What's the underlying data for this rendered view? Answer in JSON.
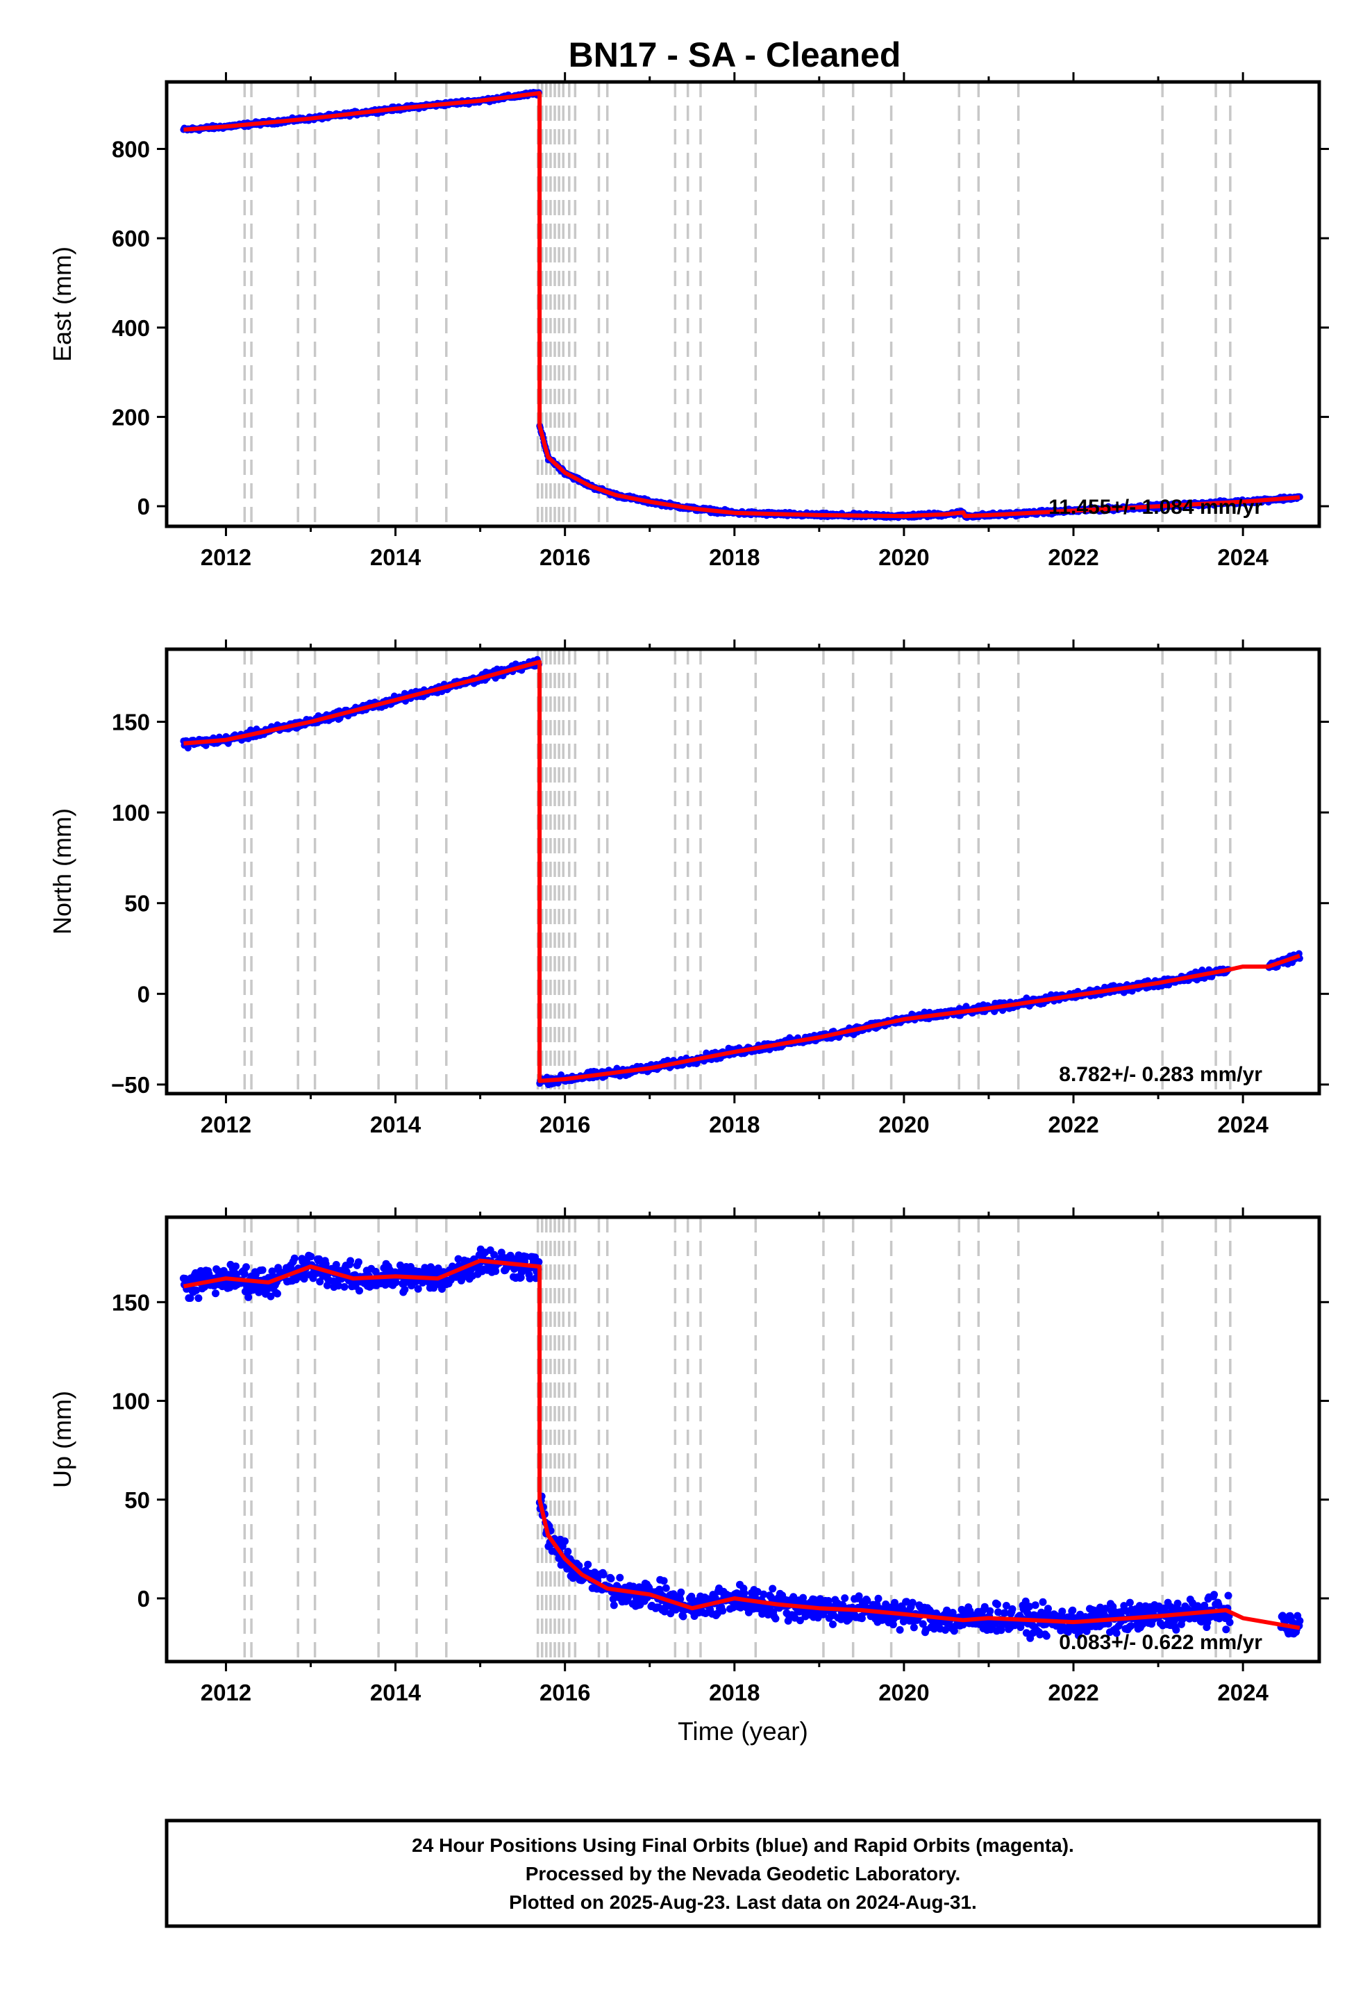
{
  "chart_data": {
    "type": "scatter",
    "title": "BN17  - SA - Cleaned",
    "xlabel": "Time (year)",
    "xlim": [
      2011.3,
      2024.9
    ],
    "x_ticks": [
      2012,
      2014,
      2016,
      2018,
      2020,
      2022,
      2024
    ],
    "x_tick_labels": [
      "2012",
      "2014",
      "2016",
      "2018",
      "2020",
      "2022",
      "2024"
    ],
    "data_start": 2011.5,
    "data_end": 2024.67,
    "colors": {
      "points": "#0000ff",
      "fit": "#ff0000",
      "events": "#c8c8c8"
    },
    "event_lines": [
      2012.22,
      2012.3,
      2012.85,
      2013.05,
      2013.8,
      2014.25,
      2014.6,
      2015.68,
      2015.73,
      2015.78,
      2015.83,
      2015.88,
      2015.93,
      2015.98,
      2016.05,
      2016.12,
      2016.4,
      2016.5,
      2017.3,
      2017.45,
      2017.6,
      2018.25,
      2019.05,
      2019.4,
      2019.85,
      2020.65,
      2020.88,
      2021.35,
      2023.05,
      2023.68,
      2023.85
    ],
    "panels": [
      {
        "name": "East",
        "ylabel": "East (mm)",
        "ylim": [
          -45,
          950
        ],
        "y_ticks": [
          0,
          200,
          400,
          600,
          800
        ],
        "y_tick_labels": [
          "0",
          "200",
          "400",
          "600",
          "800"
        ],
        "rate_label": "11.455+/- 1.084 mm/yr",
        "noise_mm": 3,
        "fit": [
          [
            2011.5,
            843
          ],
          [
            2012.0,
            850
          ],
          [
            2013.0,
            868
          ],
          [
            2014.0,
            890
          ],
          [
            2015.0,
            908
          ],
          [
            2015.7,
            925
          ],
          [
            2015.7,
            180
          ],
          [
            2015.8,
            110
          ],
          [
            2016.0,
            75
          ],
          [
            2016.3,
            45
          ],
          [
            2016.6,
            25
          ],
          [
            2017.0,
            10
          ],
          [
            2017.5,
            -5
          ],
          [
            2018.0,
            -15
          ],
          [
            2019.0,
            -20
          ],
          [
            2020.0,
            -22
          ],
          [
            2020.5,
            -18
          ],
          [
            2020.7,
            -14
          ],
          [
            2020.72,
            -22
          ],
          [
            2021.0,
            -20
          ],
          [
            2022.0,
            -10
          ],
          [
            2023.0,
            0
          ],
          [
            2024.0,
            10
          ],
          [
            2024.67,
            20
          ]
        ]
      },
      {
        "name": "North",
        "ylabel": "North (mm)",
        "ylim": [
          -55,
          190
        ],
        "y_ticks": [
          -50,
          0,
          50,
          100,
          150
        ],
        "y_tick_labels": [
          "−50",
          "0",
          "50",
          "100",
          "150"
        ],
        "rate_label": "8.782+/- 0.283 mm/yr",
        "noise_mm": 1.5,
        "gaps": [
          [
            23.83,
            24.3
          ]
        ],
        "fit": [
          [
            2011.5,
            138
          ],
          [
            2012.0,
            140
          ],
          [
            2013.0,
            150
          ],
          [
            2014.0,
            162
          ],
          [
            2015.0,
            174
          ],
          [
            2015.7,
            183
          ],
          [
            2015.7,
            -48
          ],
          [
            2016.0,
            -47
          ],
          [
            2017.0,
            -41
          ],
          [
            2018.0,
            -32
          ],
          [
            2019.0,
            -24
          ],
          [
            2020.0,
            -14
          ],
          [
            2021.0,
            -8
          ],
          [
            2022.0,
            -1
          ],
          [
            2023.0,
            6
          ],
          [
            2023.8,
            13
          ],
          [
            2024.0,
            15
          ],
          [
            2024.3,
            15
          ],
          [
            2024.67,
            21
          ]
        ]
      },
      {
        "name": "Up",
        "ylabel": "Up (mm)",
        "ylim": [
          -32,
          193
        ],
        "y_ticks": [
          0,
          50,
          100,
          150
        ],
        "y_tick_labels": [
          "0",
          "50",
          "100",
          "150"
        ],
        "rate_label": "0.083+/- 0.622 mm/yr",
        "noise_mm": 5,
        "gaps": [
          [
            23.85,
            24.45
          ]
        ],
        "fit": [
          [
            2011.5,
            158
          ],
          [
            2012.0,
            162
          ],
          [
            2012.5,
            160
          ],
          [
            2013.0,
            168
          ],
          [
            2013.5,
            162
          ],
          [
            2014.0,
            163
          ],
          [
            2014.5,
            162
          ],
          [
            2015.0,
            171
          ],
          [
            2015.7,
            168
          ],
          [
            2015.7,
            50
          ],
          [
            2015.8,
            32
          ],
          [
            2016.0,
            20
          ],
          [
            2016.2,
            12
          ],
          [
            2016.5,
            5
          ],
          [
            2017.0,
            2
          ],
          [
            2017.5,
            -5
          ],
          [
            2018.0,
            0
          ],
          [
            2018.5,
            -3
          ],
          [
            2019.0,
            -5
          ],
          [
            2019.5,
            -6
          ],
          [
            2020.0,
            -8
          ],
          [
            2020.7,
            -11
          ],
          [
            2021.0,
            -10
          ],
          [
            2022.0,
            -12
          ],
          [
            2023.0,
            -9
          ],
          [
            2023.8,
            -6
          ],
          [
            2024.0,
            -10
          ],
          [
            2024.67,
            -15
          ]
        ]
      }
    ]
  },
  "footer": {
    "line1": "24 Hour Positions Using Final Orbits (blue) and Rapid Orbits (magenta).",
    "line2": "Processed by the Nevada Geodetic Laboratory.",
    "line3": "Plotted on 2025-Aug-23. Last data on 2024-Aug-31."
  }
}
